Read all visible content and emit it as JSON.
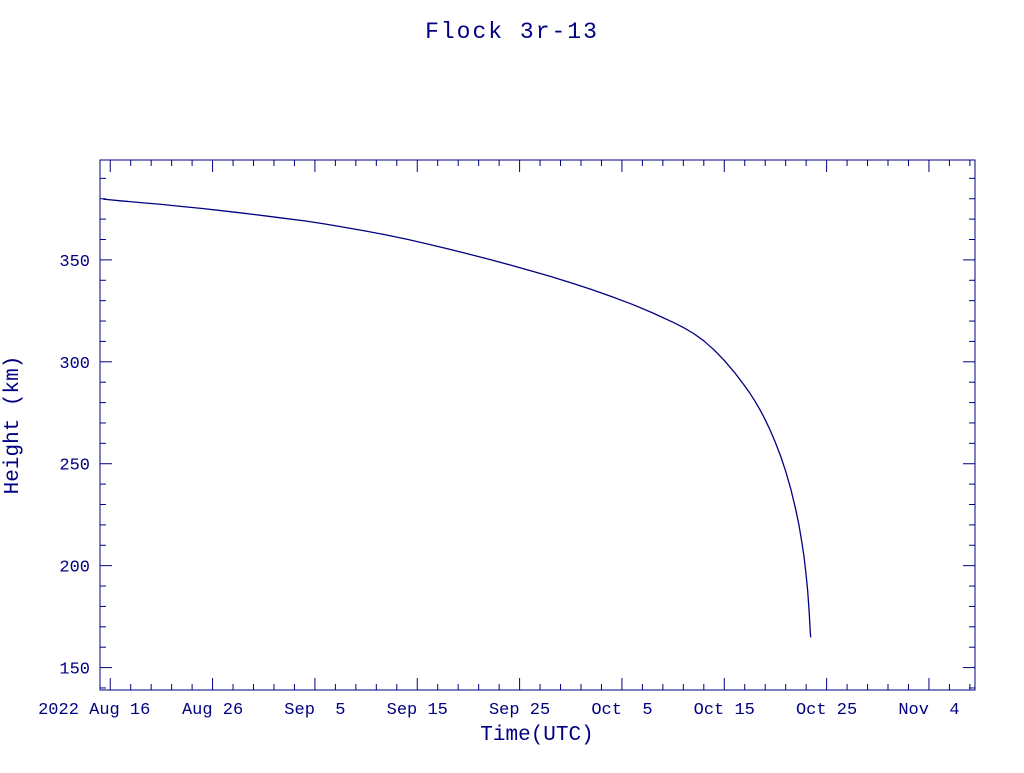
{
  "page": {
    "background": "#ffffff",
    "accent": "#000080"
  },
  "chart_data": {
    "type": "line",
    "title": "Flock 3r-13",
    "xlabel": "Time(UTC)",
    "ylabel": "Height (km)",
    "grid": false,
    "legend": null,
    "line_color": "#000080",
    "xlim_days": [
      0,
      85.5
    ],
    "x_ticks": [
      {
        "label": "2022 Aug 16",
        "day": 1,
        "dx": -16
      },
      {
        "label": "Aug 26",
        "day": 11
      },
      {
        "label": "Sep  5",
        "day": 21
      },
      {
        "label": "Sep 15",
        "day": 31
      },
      {
        "label": "Sep 25",
        "day": 41
      },
      {
        "label": "Oct  5",
        "day": 51
      },
      {
        "label": "Oct 15",
        "day": 61
      },
      {
        "label": "Oct 25",
        "day": 71
      },
      {
        "label": "Nov  4",
        "day": 81
      }
    ],
    "x_minor_start": 1,
    "x_minor_step_days": 2,
    "ylim": [
      139,
      399
    ],
    "y_ticks": [
      150,
      200,
      250,
      300,
      350
    ],
    "y_minor_step": 10,
    "series": [
      {
        "name": "Flock 3r-13",
        "points_day_km": [
          [
            0.3,
            379.8
          ],
          [
            2,
            379.0
          ],
          [
            4,
            378.1
          ],
          [
            6,
            377.2
          ],
          [
            8,
            376.2
          ],
          [
            10,
            375.2
          ],
          [
            12,
            374.1
          ],
          [
            14,
            372.9
          ],
          [
            16,
            371.7
          ],
          [
            18,
            370.4
          ],
          [
            20,
            369.1
          ],
          [
            22,
            367.6
          ],
          [
            24,
            365.9
          ],
          [
            26,
            364.1
          ],
          [
            28,
            362.2
          ],
          [
            30,
            360.1
          ],
          [
            32,
            357.8
          ],
          [
            34,
            355.4
          ],
          [
            36,
            352.9
          ],
          [
            38,
            350.3
          ],
          [
            40,
            347.6
          ],
          [
            42,
            344.8
          ],
          [
            44,
            341.9
          ],
          [
            46,
            338.8
          ],
          [
            48,
            335.5
          ],
          [
            50,
            332.0
          ],
          [
            52,
            328.2
          ],
          [
            54,
            324.0
          ],
          [
            56,
            319.4
          ],
          [
            57,
            316.9
          ],
          [
            58,
            313.9
          ],
          [
            59,
            310.3
          ],
          [
            60,
            305.9
          ],
          [
            61,
            300.7
          ],
          [
            62,
            294.8
          ],
          [
            63,
            288.2
          ],
          [
            63.5,
            284.6
          ],
          [
            64,
            280.7
          ],
          [
            64.5,
            276.4
          ],
          [
            65,
            271.6
          ],
          [
            65.5,
            266.3
          ],
          [
            66,
            260.4
          ],
          [
            66.5,
            253.8
          ],
          [
            67,
            246.3
          ],
          [
            67.5,
            237.6
          ],
          [
            68,
            227.2
          ],
          [
            68.3,
            219.8
          ],
          [
            68.6,
            211.0
          ],
          [
            68.8,
            204.1
          ],
          [
            69.0,
            195.5
          ],
          [
            69.15,
            187.5
          ],
          [
            69.3,
            177.0
          ],
          [
            69.4,
            168.0
          ],
          [
            69.45,
            164.8
          ]
        ]
      }
    ]
  }
}
